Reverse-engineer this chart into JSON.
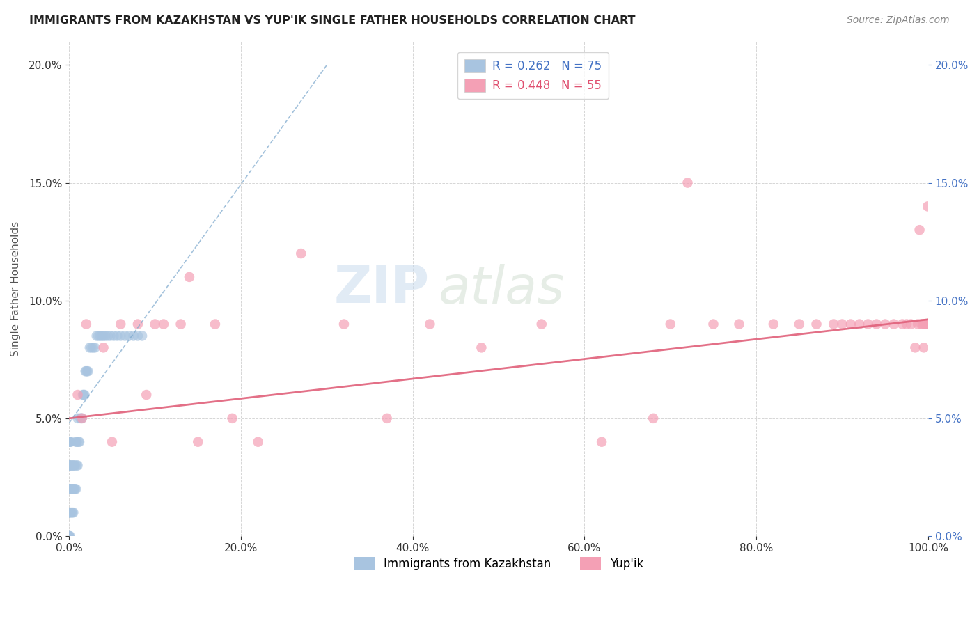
{
  "title": "IMMIGRANTS FROM KAZAKHSTAN VS YUP'IK SINGLE FATHER HOUSEHOLDS CORRELATION CHART",
  "source": "Source: ZipAtlas.com",
  "ylabel": "Single Father Households",
  "legend_labels": [
    "Immigrants from Kazakhstan",
    "Yup'ik"
  ],
  "r_kazakhstan": 0.262,
  "n_kazakhstan": 75,
  "r_yupik": 0.448,
  "n_yupik": 55,
  "color_kazakhstan": "#a8c4e0",
  "color_yupik": "#f4a0b5",
  "trendline_kazakhstan_color": "#7ba7cc",
  "trendline_yupik_color": "#e0607a",
  "background_color": "#ffffff",
  "watermark_zip": "ZIP",
  "watermark_atlas": "atlas",
  "xlim": [
    0.0,
    1.0
  ],
  "ylim": [
    0.0,
    0.21
  ],
  "yticks": [
    0.0,
    0.05,
    0.1,
    0.15,
    0.2
  ],
  "xticks": [
    0.0,
    0.2,
    0.4,
    0.6,
    0.8,
    1.0
  ],
  "kaz_x": [
    0.0,
    0.0,
    0.0,
    0.0,
    0.0,
    0.0,
    0.0,
    0.0,
    0.0,
    0.0,
    0.0,
    0.0,
    0.0,
    0.0,
    0.0,
    0.001,
    0.001,
    0.001,
    0.001,
    0.001,
    0.002,
    0.002,
    0.002,
    0.002,
    0.003,
    0.003,
    0.003,
    0.004,
    0.004,
    0.004,
    0.005,
    0.005,
    0.005,
    0.006,
    0.006,
    0.007,
    0.007,
    0.008,
    0.008,
    0.009,
    0.009,
    0.01,
    0.01,
    0.011,
    0.012,
    0.013,
    0.014,
    0.015,
    0.016,
    0.017,
    0.018,
    0.019,
    0.02,
    0.021,
    0.022,
    0.024,
    0.026,
    0.028,
    0.03,
    0.032,
    0.034,
    0.036,
    0.038,
    0.04,
    0.042,
    0.045,
    0.048,
    0.052,
    0.056,
    0.06,
    0.065,
    0.07,
    0.075,
    0.08,
    0.085
  ],
  "kaz_y": [
    0.0,
    0.0,
    0.0,
    0.01,
    0.01,
    0.01,
    0.02,
    0.02,
    0.02,
    0.02,
    0.03,
    0.03,
    0.03,
    0.04,
    0.04,
    0.0,
    0.01,
    0.02,
    0.03,
    0.04,
    0.01,
    0.02,
    0.03,
    0.04,
    0.01,
    0.02,
    0.03,
    0.01,
    0.02,
    0.03,
    0.01,
    0.02,
    0.03,
    0.02,
    0.03,
    0.02,
    0.03,
    0.02,
    0.04,
    0.03,
    0.04,
    0.03,
    0.05,
    0.04,
    0.04,
    0.05,
    0.05,
    0.05,
    0.06,
    0.06,
    0.06,
    0.07,
    0.07,
    0.07,
    0.07,
    0.08,
    0.08,
    0.08,
    0.08,
    0.085,
    0.085,
    0.085,
    0.085,
    0.085,
    0.085,
    0.085,
    0.085,
    0.085,
    0.085,
    0.085,
    0.085,
    0.085,
    0.085,
    0.085,
    0.085
  ],
  "yup_x": [
    0.01,
    0.015,
    0.02,
    0.04,
    0.05,
    0.06,
    0.08,
    0.09,
    0.1,
    0.11,
    0.13,
    0.14,
    0.15,
    0.17,
    0.19,
    0.22,
    0.27,
    0.32,
    0.37,
    0.42,
    0.48,
    0.55,
    0.62,
    0.68,
    0.7,
    0.72,
    0.75,
    0.78,
    0.82,
    0.85,
    0.87,
    0.89,
    0.9,
    0.91,
    0.92,
    0.93,
    0.94,
    0.95,
    0.96,
    0.97,
    0.975,
    0.98,
    0.985,
    0.988,
    0.99,
    0.992,
    0.994,
    0.995,
    0.996,
    0.997,
    0.998,
    0.9985,
    0.999,
    0.9995,
    1.0
  ],
  "yup_y": [
    0.06,
    0.05,
    0.09,
    0.08,
    0.04,
    0.09,
    0.09,
    0.06,
    0.09,
    0.09,
    0.09,
    0.11,
    0.04,
    0.09,
    0.05,
    0.04,
    0.12,
    0.09,
    0.05,
    0.09,
    0.08,
    0.09,
    0.04,
    0.05,
    0.09,
    0.15,
    0.09,
    0.09,
    0.09,
    0.09,
    0.09,
    0.09,
    0.09,
    0.09,
    0.09,
    0.09,
    0.09,
    0.09,
    0.09,
    0.09,
    0.09,
    0.09,
    0.08,
    0.09,
    0.13,
    0.09,
    0.09,
    0.08,
    0.09,
    0.09,
    0.09,
    0.09,
    0.09,
    0.14,
    0.09
  ],
  "kaz_trendline_x": [
    0.0,
    0.3
  ],
  "kaz_trendline_y": [
    0.048,
    0.2
  ],
  "yup_trendline_x": [
    0.0,
    1.0
  ],
  "yup_trendline_y": [
    0.05,
    0.092
  ]
}
